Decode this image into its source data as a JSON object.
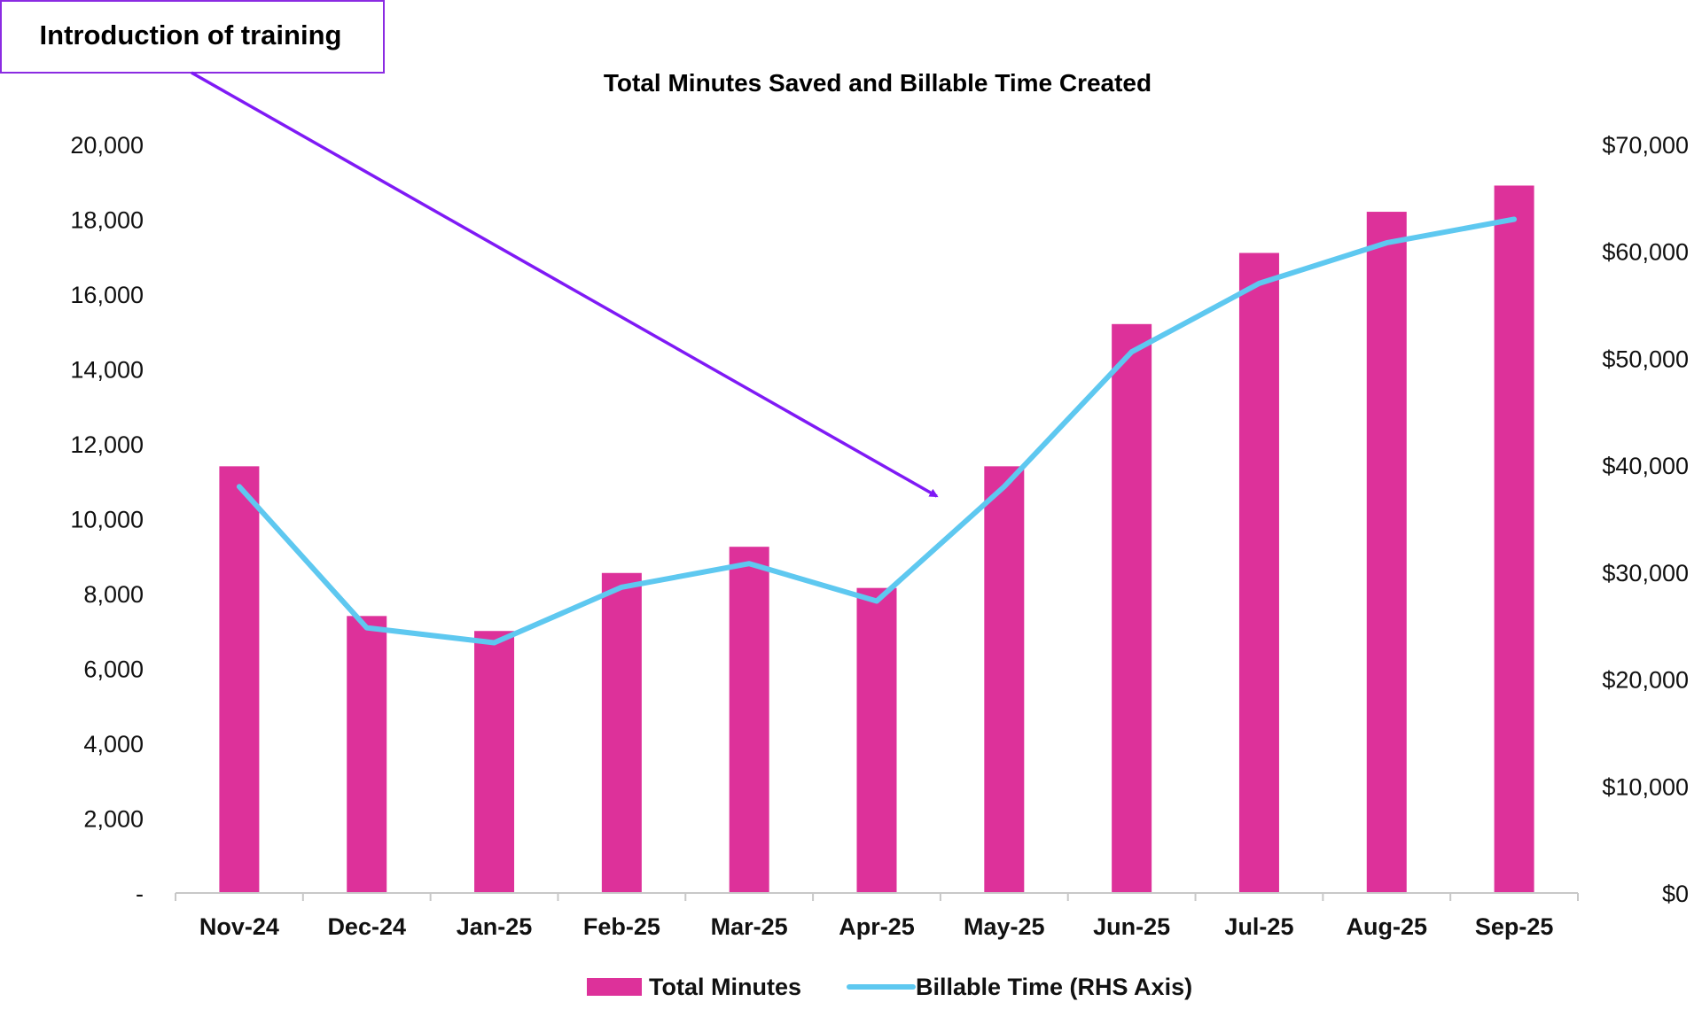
{
  "chart_data": {
    "type": "bar",
    "title": "Total Minutes Saved and Billable Time Created",
    "categories": [
      "Nov-24",
      "Dec-24",
      "Jan-25",
      "Feb-25",
      "Mar-25",
      "Apr-25",
      "May-25",
      "Jun-25",
      "Jul-25",
      "Aug-25",
      "Sep-25"
    ],
    "series": [
      {
        "name": "Total Minutes",
        "type": "bar",
        "axis": "left",
        "color": "#DD319A",
        "values": [
          11400,
          7400,
          7000,
          8550,
          9250,
          8150,
          11400,
          15200,
          17100,
          18200,
          18900
        ]
      },
      {
        "name": "Billable Time (RHS Axis)",
        "type": "line",
        "axis": "right",
        "color": "#5EC8F0",
        "values": [
          38000,
          24800,
          23400,
          28600,
          30800,
          27300,
          38000,
          50600,
          57000,
          60800,
          63000
        ]
      }
    ],
    "y_left": {
      "ylim": [
        0,
        20000
      ],
      "tick_values": [
        0,
        2000,
        4000,
        6000,
        8000,
        10000,
        12000,
        14000,
        16000,
        18000,
        20000
      ],
      "tick_labels": [
        "-",
        "2,000",
        "4,000",
        "6,000",
        "8,000",
        "10,000",
        "12,000",
        "14,000",
        "16,000",
        "18,000",
        "20,000"
      ]
    },
    "y_right": {
      "ylim": [
        0,
        70000
      ],
      "tick_values": [
        0,
        10000,
        20000,
        30000,
        40000,
        50000,
        60000,
        70000
      ],
      "tick_labels": [
        "$0",
        "$10,000",
        "$20,000",
        "$30,000",
        "$40,000",
        "$50,000",
        "$60,000",
        "$70,000"
      ]
    },
    "grid": false,
    "legend_position": "bottom",
    "annotation": {
      "text": "Introduction of training",
      "points_to": "May-25",
      "color": "#7F1AF5"
    }
  }
}
